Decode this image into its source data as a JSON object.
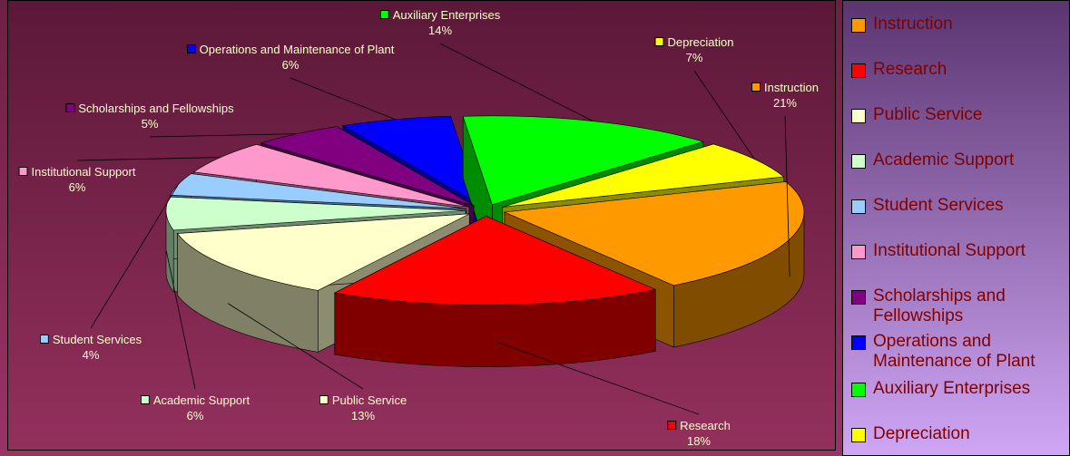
{
  "chart_data": {
    "type": "pie",
    "categories": [
      "Instruction",
      "Research",
      "Public Service",
      "Academic Support",
      "Student Services",
      "Institutional Support",
      "Scholarships and Fellowships",
      "Operations and Maintenance of Plant",
      "Auxiliary Enterprises",
      "Depreciation"
    ],
    "values": [
      21,
      18,
      13,
      6,
      4,
      6,
      5,
      6,
      14,
      7
    ],
    "value_labels": [
      "21%",
      "18%",
      "13%",
      "6%",
      "4%",
      "6%",
      "5%",
      "6%",
      "14%",
      "7%"
    ],
    "colors": [
      "#ff9900",
      "#ff0000",
      "#ffffcc",
      "#ccffcc",
      "#99ccff",
      "#ff99cc",
      "#800080",
      "#0000ff",
      "#00ff00",
      "#ffff00"
    ],
    "legend": "right"
  }
}
